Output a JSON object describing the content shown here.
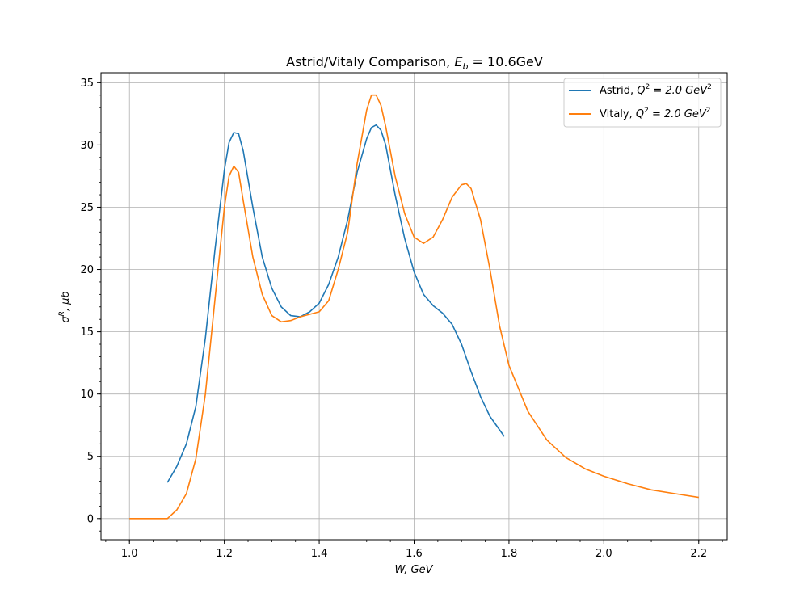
{
  "chart_data": {
    "type": "line",
    "title": "Astrid/Vitaly Comparison, E_b = 10.6GeV",
    "title_parts": {
      "prefix": "Astrid/Vitaly Comparison, ",
      "sym": "E",
      "sub": "b",
      "rest": " = 10.6GeV"
    },
    "xlabel": "W, GeV",
    "ylabel": "σ^R, μb",
    "xlim": [
      0.94,
      2.26
    ],
    "ylim": [
      -1.7,
      35.8
    ],
    "xticks": [
      1.0,
      1.2,
      1.4,
      1.6,
      1.8,
      2.0,
      2.2
    ],
    "xtick_labels": [
      "1.0",
      "1.2",
      "1.4",
      "1.6",
      "1.8",
      "2.0",
      "2.2"
    ],
    "yticks": [
      0,
      5,
      10,
      15,
      20,
      25,
      30,
      35
    ],
    "ytick_labels": [
      "0",
      "5",
      "10",
      "15",
      "20",
      "25",
      "30",
      "35"
    ],
    "grid": true,
    "legend_position": "top-right",
    "series": [
      {
        "name": "Astrid, Q^2 = 2.0 GeV^2",
        "legend_parts": {
          "prefix": "Astrid, ",
          "sym": "Q",
          "sup": "2",
          "mid": " = 2.0 GeV",
          "sup2": "2"
        },
        "color": "#1f77b4",
        "x": [
          1.08,
          1.1,
          1.12,
          1.14,
          1.16,
          1.18,
          1.2,
          1.21,
          1.22,
          1.23,
          1.24,
          1.26,
          1.28,
          1.3,
          1.32,
          1.34,
          1.36,
          1.38,
          1.4,
          1.42,
          1.44,
          1.46,
          1.48,
          1.5,
          1.51,
          1.52,
          1.53,
          1.54,
          1.56,
          1.58,
          1.6,
          1.62,
          1.64,
          1.66,
          1.68,
          1.7,
          1.72,
          1.74,
          1.76,
          1.79
        ],
        "y": [
          2.9,
          4.2,
          6.0,
          9.0,
          14.5,
          21.5,
          28.0,
          30.2,
          31.0,
          30.9,
          29.5,
          25.0,
          21.0,
          18.5,
          17.0,
          16.3,
          16.2,
          16.6,
          17.3,
          18.8,
          21.0,
          24.0,
          27.8,
          30.5,
          31.4,
          31.6,
          31.2,
          30.0,
          26.0,
          22.5,
          19.8,
          18.0,
          17.1,
          16.5,
          15.6,
          14.0,
          11.8,
          9.8,
          8.2,
          6.6
        ]
      },
      {
        "name": "Vitaly, Q^2 = 2.0 GeV^2",
        "legend_parts": {
          "prefix": "Vitaly, ",
          "sym": "Q",
          "sup": "2",
          "mid": " = 2.0 GeV",
          "sup2": "2"
        },
        "color": "#ff7f0e",
        "x": [
          1.0,
          1.08,
          1.1,
          1.12,
          1.14,
          1.16,
          1.18,
          1.2,
          1.21,
          1.22,
          1.23,
          1.24,
          1.26,
          1.28,
          1.3,
          1.32,
          1.34,
          1.36,
          1.38,
          1.4,
          1.42,
          1.44,
          1.46,
          1.48,
          1.5,
          1.51,
          1.52,
          1.53,
          1.54,
          1.56,
          1.58,
          1.6,
          1.62,
          1.64,
          1.66,
          1.68,
          1.7,
          1.71,
          1.72,
          1.74,
          1.76,
          1.78,
          1.8,
          1.84,
          1.88,
          1.92,
          1.96,
          2.0,
          2.05,
          2.1,
          2.15,
          2.2
        ],
        "y": [
          0.0,
          0.0,
          0.7,
          2.0,
          4.8,
          10.0,
          17.5,
          25.0,
          27.5,
          28.3,
          27.8,
          25.5,
          21.0,
          18.0,
          16.3,
          15.8,
          15.9,
          16.2,
          16.4,
          16.6,
          17.5,
          20.0,
          23.0,
          28.5,
          32.8,
          34.0,
          34.0,
          33.2,
          31.5,
          27.5,
          24.5,
          22.6,
          22.1,
          22.6,
          24.0,
          25.8,
          26.8,
          26.9,
          26.5,
          24.0,
          20.0,
          15.5,
          12.3,
          8.6,
          6.3,
          4.9,
          4.0,
          3.4,
          2.8,
          2.3,
          2.0,
          1.7
        ]
      }
    ]
  }
}
